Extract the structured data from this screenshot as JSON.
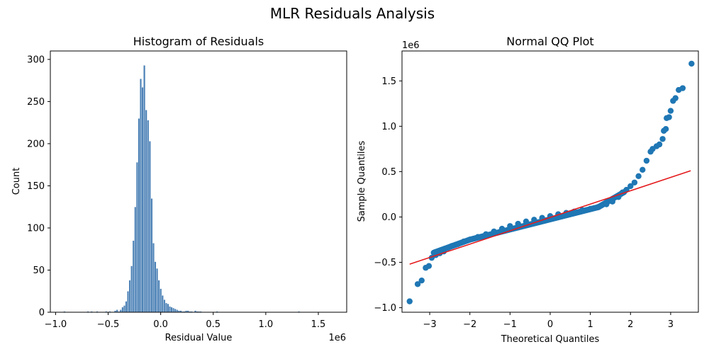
{
  "figure": {
    "suptitle": "MLR Residuals Analysis"
  },
  "chart_data": [
    {
      "type": "bar",
      "title": "Histogram of Residuals",
      "xlabel": "Residual Value",
      "ylabel": "Count",
      "x_offset_label": "1e6",
      "xlim": [
        -1.05,
        1.77
      ],
      "ylim": [
        0,
        310
      ],
      "xticks": [
        -1.0,
        -0.5,
        0.0,
        0.5,
        1.0,
        1.5
      ],
      "xtick_labels": [
        "−1.0",
        "−0.5",
        "0.0",
        "0.5",
        "1.0",
        "1.5"
      ],
      "yticks": [
        0,
        50,
        100,
        150,
        200,
        250,
        300
      ],
      "ytick_labels": [
        "0",
        "50",
        "100",
        "150",
        "200",
        "250",
        "300"
      ],
      "bar_color": "#3b75af",
      "bin_start": -0.925,
      "bin_width": 0.0173,
      "values": [
        1,
        0,
        0,
        0,
        0,
        0,
        0,
        0,
        0,
        0,
        0,
        0,
        0,
        1,
        0,
        1,
        0,
        0,
        1,
        0,
        0,
        0,
        0,
        1,
        0,
        1,
        0,
        0,
        2,
        3,
        1,
        3,
        6,
        8,
        13,
        25,
        38,
        55,
        85,
        125,
        178,
        230,
        277,
        267,
        293,
        240,
        228,
        203,
        135,
        82,
        60,
        52,
        38,
        28,
        20,
        15,
        11,
        10,
        7,
        6,
        5,
        4,
        3,
        2,
        2,
        1,
        1,
        2,
        2,
        1,
        1,
        0,
        2,
        1,
        1,
        1,
        0,
        0,
        0,
        0,
        0,
        0,
        0,
        0,
        1,
        0,
        0,
        0,
        0,
        0,
        0,
        0,
        0,
        0,
        0,
        0,
        0,
        0,
        0,
        0,
        0,
        0,
        0,
        0,
        0,
        0,
        0,
        0,
        0,
        0,
        0,
        0,
        0,
        0,
        0,
        0,
        0,
        0,
        0,
        0,
        0,
        0,
        0,
        0,
        0,
        0,
        0,
        0,
        0,
        1
      ]
    },
    {
      "type": "scatter",
      "title": "Normal QQ Plot",
      "xlabel": "Theoretical Quantiles",
      "ylabel": "Sample Quantiles",
      "y_offset_label": "1e6",
      "xlim": [
        -3.69,
        3.69
      ],
      "ylim": [
        -1.05,
        1.83
      ],
      "xticks": [
        -3,
        -2,
        -1,
        0,
        1,
        2,
        3
      ],
      "xtick_labels": [
        "−3",
        "−2",
        "−1",
        "0",
        "1",
        "2",
        "3"
      ],
      "yticks": [
        -1.0,
        -0.5,
        0.0,
        0.5,
        1.0,
        1.5
      ],
      "ytick_labels": [
        "−1.0",
        "−0.5",
        "0.0",
        "0.5",
        "1.0",
        "1.5"
      ],
      "point_color": "#1f77b4",
      "line_color": "#e41a1c",
      "reference_line": {
        "x": [
          -3.5,
          3.5
        ],
        "y": [
          -0.52,
          0.51
        ]
      },
      "points": [
        [
          -3.5,
          -0.93
        ],
        [
          -3.3,
          -0.74
        ],
        [
          -3.2,
          -0.7
        ],
        [
          -3.1,
          -0.56
        ],
        [
          -3.02,
          -0.54
        ],
        [
          -2.95,
          -0.45
        ],
        [
          -2.85,
          -0.42
        ],
        [
          -2.75,
          -0.4
        ],
        [
          -2.65,
          -0.38
        ],
        [
          -2.55,
          -0.34
        ],
        [
          -2.45,
          -0.32
        ],
        [
          -2.3,
          -0.3
        ],
        [
          -2.15,
          -0.27
        ],
        [
          -2.0,
          -0.25
        ],
        [
          -1.8,
          -0.22
        ],
        [
          -1.6,
          -0.19
        ],
        [
          -1.4,
          -0.16
        ],
        [
          -1.2,
          -0.13
        ],
        [
          -1.0,
          -0.1
        ],
        [
          -0.8,
          -0.075
        ],
        [
          -0.6,
          -0.05
        ],
        [
          -0.4,
          -0.03
        ],
        [
          -0.2,
          -0.01
        ],
        [
          0.0,
          0.01
        ],
        [
          0.2,
          0.03
        ],
        [
          0.4,
          0.045
        ],
        [
          0.6,
          0.06
        ],
        [
          0.8,
          0.075
        ],
        [
          1.0,
          0.09
        ],
        [
          1.2,
          0.11
        ],
        [
          1.4,
          0.14
        ],
        [
          1.55,
          0.17
        ],
        [
          1.7,
          0.22
        ],
        [
          1.8,
          0.27
        ],
        [
          1.9,
          0.3
        ],
        [
          2.0,
          0.34
        ],
        [
          2.1,
          0.38
        ],
        [
          2.2,
          0.45
        ],
        [
          2.3,
          0.52
        ],
        [
          2.4,
          0.62
        ],
        [
          2.5,
          0.72
        ],
        [
          2.55,
          0.75
        ],
        [
          2.65,
          0.78
        ],
        [
          2.72,
          0.8
        ],
        [
          2.8,
          0.86
        ],
        [
          2.83,
          0.95
        ],
        [
          2.88,
          0.97
        ],
        [
          2.9,
          1.09
        ],
        [
          2.96,
          1.1
        ],
        [
          3.0,
          1.17
        ],
        [
          3.06,
          1.28
        ],
        [
          3.12,
          1.31
        ],
        [
          3.2,
          1.4
        ],
        [
          3.3,
          1.42
        ],
        [
          3.52,
          1.69
        ]
      ]
    }
  ]
}
